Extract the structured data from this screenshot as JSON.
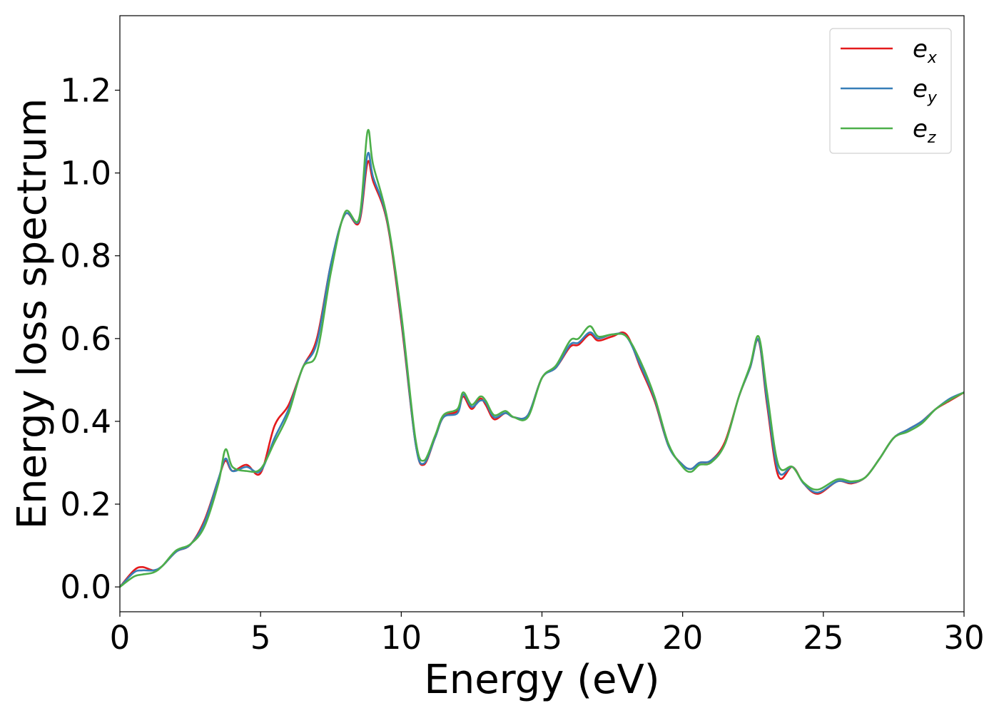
{
  "chart_data": {
    "type": "line",
    "title": "",
    "xlabel": "Energy (eV)",
    "ylabel": "Energy loss spectrum",
    "xlim": [
      0,
      30
    ],
    "ylim": [
      -0.06,
      1.38
    ],
    "xticks": [
      0,
      5,
      10,
      15,
      20,
      25,
      30
    ],
    "yticks": [
      0.0,
      0.2,
      0.4,
      0.6,
      0.8,
      1.0,
      1.2
    ],
    "xtick_labels": [
      "0",
      "5",
      "10",
      "15",
      "20",
      "25",
      "30"
    ],
    "ytick_labels": [
      "0.0",
      "0.2",
      "0.4",
      "0.6",
      "0.8",
      "1.0",
      "1.2"
    ],
    "grid": false,
    "legend_position": "top-right",
    "x": [
      0,
      0.5,
      0.8,
      1.2,
      1.5,
      2.0,
      2.5,
      3.0,
      3.5,
      3.75,
      4.0,
      4.5,
      5.0,
      5.5,
      6.0,
      6.5,
      7.0,
      7.5,
      8.0,
      8.5,
      8.8,
      9.0,
      9.5,
      10.0,
      10.5,
      10.8,
      11.2,
      11.5,
      12.0,
      12.2,
      12.5,
      12.8,
      13.0,
      13.3,
      13.7,
      14.0,
      14.5,
      15.0,
      15.5,
      16.0,
      16.3,
      16.7,
      17.0,
      17.5,
      18.0,
      18.5,
      19.0,
      19.5,
      20.0,
      20.3,
      20.6,
      21.0,
      21.5,
      22.0,
      22.4,
      22.7,
      23.0,
      23.4,
      23.9,
      24.3,
      24.8,
      25.5,
      26.0,
      26.5,
      27.0,
      27.5,
      28.0,
      28.5,
      29.0,
      29.5,
      30.0
    ],
    "series": [
      {
        "name": "e_x",
        "label_main": "e",
        "label_sub": "x",
        "color": "#e41a1c",
        "values": [
          0.0,
          0.04,
          0.048,
          0.04,
          0.05,
          0.085,
          0.102,
          0.16,
          0.26,
          0.305,
          0.28,
          0.295,
          0.275,
          0.39,
          0.44,
          0.53,
          0.6,
          0.78,
          0.9,
          0.88,
          1.025,
          0.98,
          0.88,
          0.64,
          0.35,
          0.295,
          0.36,
          0.41,
          0.425,
          0.46,
          0.43,
          0.455,
          0.44,
          0.405,
          0.42,
          0.41,
          0.415,
          0.505,
          0.53,
          0.58,
          0.585,
          0.61,
          0.595,
          0.605,
          0.61,
          0.53,
          0.45,
          0.34,
          0.295,
          0.285,
          0.3,
          0.305,
          0.35,
          0.46,
          0.53,
          0.595,
          0.44,
          0.268,
          0.29,
          0.25,
          0.225,
          0.255,
          0.25,
          0.265,
          0.31,
          0.36,
          0.38,
          0.4,
          0.43,
          0.45,
          0.47
        ]
      },
      {
        "name": "e_y",
        "label_main": "e",
        "label_sub": "y",
        "color": "#377eb8",
        "values": [
          0.0,
          0.035,
          0.04,
          0.04,
          0.05,
          0.085,
          0.102,
          0.155,
          0.26,
          0.31,
          0.28,
          0.29,
          0.28,
          0.36,
          0.43,
          0.53,
          0.59,
          0.78,
          0.9,
          0.885,
          1.045,
          0.99,
          0.885,
          0.65,
          0.35,
          0.298,
          0.36,
          0.41,
          0.42,
          0.465,
          0.435,
          0.45,
          0.445,
          0.41,
          0.42,
          0.41,
          0.415,
          0.505,
          0.53,
          0.585,
          0.59,
          0.615,
          0.6,
          0.61,
          0.605,
          0.535,
          0.455,
          0.34,
          0.295,
          0.285,
          0.3,
          0.305,
          0.345,
          0.46,
          0.53,
          0.597,
          0.45,
          0.28,
          0.29,
          0.25,
          0.228,
          0.255,
          0.252,
          0.265,
          0.31,
          0.36,
          0.38,
          0.4,
          0.43,
          0.455,
          0.47
        ]
      },
      {
        "name": "e_z",
        "label_main": "e",
        "label_sub": "z",
        "color": "#4daf4a",
        "values": [
          0.0,
          0.025,
          0.03,
          0.035,
          0.05,
          0.088,
          0.103,
          0.145,
          0.25,
          0.332,
          0.29,
          0.28,
          0.285,
          0.35,
          0.42,
          0.53,
          0.565,
          0.76,
          0.905,
          0.89,
          1.1,
          1.02,
          0.89,
          0.66,
          0.36,
          0.305,
          0.365,
          0.415,
          0.43,
          0.47,
          0.44,
          0.46,
          0.45,
          0.415,
          0.425,
          0.41,
          0.41,
          0.505,
          0.535,
          0.595,
          0.6,
          0.63,
          0.605,
          0.61,
          0.605,
          0.545,
          0.46,
          0.345,
          0.29,
          0.278,
          0.295,
          0.3,
          0.345,
          0.46,
          0.535,
          0.605,
          0.47,
          0.295,
          0.29,
          0.252,
          0.235,
          0.26,
          0.255,
          0.265,
          0.31,
          0.36,
          0.375,
          0.395,
          0.43,
          0.452,
          0.47
        ]
      }
    ]
  }
}
